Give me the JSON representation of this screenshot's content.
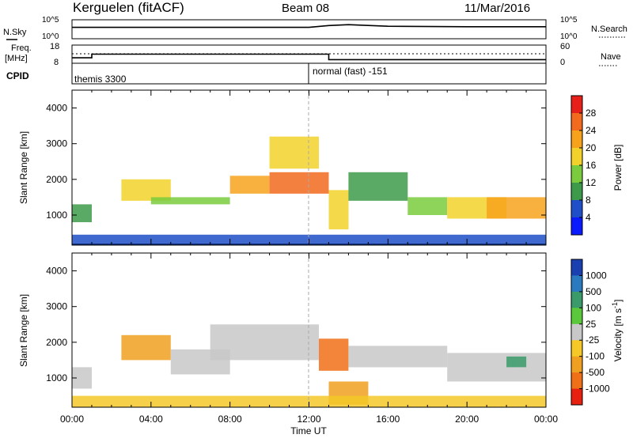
{
  "header": {
    "station": "Kerguelen (fitACF)",
    "beam": "Beam 08",
    "date": "11/Mar/2016"
  },
  "noise_panel": {
    "left_label": "N.Sky",
    "right_label": "N.Search",
    "left_ticks": [
      "10^5",
      "10^0"
    ],
    "right_ticks": [
      "10^5",
      "10^0"
    ]
  },
  "freq_panel": {
    "left_label_1": "Freq.",
    "left_label_2": "[MHz]",
    "right_label": "Nave",
    "left_ticks": [
      "18",
      "8"
    ],
    "right_ticks": [
      "60",
      "0"
    ]
  },
  "cpid_panel": {
    "label": "CPID",
    "modes": [
      "themis 3300",
      "normal (fast) -151"
    ]
  },
  "power_panel": {
    "ylabel": "Slant Range [km]",
    "colorbar_label": "Power [dB]",
    "colorbar_ticks": [
      "28",
      "24",
      "20",
      "16",
      "12",
      "8",
      "4"
    ],
    "colorbar_colors": [
      "#e8201a",
      "#f26a1e",
      "#f7a21c",
      "#f2d22a",
      "#7acb3d",
      "#3d9a4a",
      "#1f4fc8",
      "#0a1aff"
    ],
    "yticks": [
      "4000",
      "3000",
      "2000",
      "1000"
    ]
  },
  "velocity_panel": {
    "ylabel": "Slant Range [km]",
    "colorbar_label": "Velocity [m s^-1]",
    "colorbar_ticks": [
      "1000",
      "500",
      "100",
      "25",
      "-25",
      "-100",
      "-500",
      "-1000"
    ],
    "colorbar_colors": [
      "#1a3fb0",
      "#2a7ac0",
      "#3a9a6a",
      "#5ac83a",
      "#c8c8c8",
      "#f5c828",
      "#f0a020",
      "#f07018",
      "#e82010"
    ],
    "yticks": [
      "4000",
      "3000",
      "2000",
      "1000"
    ]
  },
  "xaxis": {
    "label": "Time UT",
    "ticks": [
      "00:00",
      "04:00",
      "08:00",
      "12:00",
      "16:00",
      "20:00",
      "00:00"
    ]
  },
  "chart_data": [
    {
      "type": "line",
      "title": "N.Sky / N.Search",
      "x": [
        "00:00",
        "04:00",
        "08:00",
        "12:00",
        "13:00",
        "14:00",
        "16:00",
        "20:00",
        "24:00"
      ],
      "series": [
        {
          "name": "N.Sky",
          "values": [
            1000,
            1000,
            1000,
            1000,
            3000,
            5000,
            2000,
            1500,
            1500
          ]
        }
      ],
      "ylim": [
        1,
        100000
      ],
      "yscale": "log"
    },
    {
      "type": "line",
      "title": "Freq. [MHz] / Nave",
      "x": [
        "00:00",
        "01:00",
        "01:00",
        "13:00",
        "13:00",
        "24:00"
      ],
      "series": [
        {
          "name": "Freq.",
          "values": [
            11,
            11,
            13,
            13,
            10,
            10
          ]
        },
        {
          "name": "Nave",
          "values": [
            18,
            18,
            18,
            18,
            18,
            18
          ]
        }
      ],
      "ylim": [
        8,
        18
      ],
      "xlabel": "",
      "ylabel": "Freq. [MHz]"
    },
    {
      "type": "heatmap",
      "title": "Power [dB]",
      "xlabel": "Time UT",
      "ylabel": "Slant Range [km]",
      "xlim": [
        0,
        24
      ],
      "ylim": [
        180,
        4500
      ],
      "zlim": [
        0,
        30
      ],
      "cells": [
        {
          "x": [
            0,
            1
          ],
          "y": [
            800,
            1300
          ],
          "z": 10
        },
        {
          "x": [
            2.5,
            5
          ],
          "y": [
            1400,
            2000
          ],
          "z": 18
        },
        {
          "x": [
            4,
            8
          ],
          "y": [
            1300,
            1500
          ],
          "z": 12
        },
        {
          "x": [
            8,
            10
          ],
          "y": [
            1600,
            2100
          ],
          "z": 22
        },
        {
          "x": [
            10,
            13
          ],
          "y": [
            1600,
            2200
          ],
          "z": 26
        },
        {
          "x": [
            10,
            12.5
          ],
          "y": [
            2300,
            3200
          ],
          "z": 16
        },
        {
          "x": [
            13,
            14
          ],
          "y": [
            600,
            1700
          ],
          "z": 18
        },
        {
          "x": [
            14,
            17
          ],
          "y": [
            1400,
            2200
          ],
          "z": 10
        },
        {
          "x": [
            17,
            19
          ],
          "y": [
            1000,
            1500
          ],
          "z": 14
        },
        {
          "x": [
            19,
            22
          ],
          "y": [
            900,
            1500
          ],
          "z": 18
        },
        {
          "x": [
            21,
            24
          ],
          "y": [
            900,
            1500
          ],
          "z": 22
        },
        {
          "x": [
            0,
            24
          ],
          "y": [
            180,
            450
          ],
          "z": 6
        }
      ]
    },
    {
      "type": "heatmap",
      "title": "Velocity [m s^-1]",
      "xlabel": "Time UT",
      "ylabel": "Slant Range [km]",
      "xlim": [
        0,
        24
      ],
      "ylim": [
        180,
        4500
      ],
      "zlim": [
        -1000,
        1000
      ],
      "cells": [
        {
          "x": [
            0,
            1
          ],
          "y": [
            700,
            1300
          ],
          "z": 0
        },
        {
          "x": [
            2.5,
            5
          ],
          "y": [
            1500,
            2200
          ],
          "z": -400
        },
        {
          "x": [
            5,
            8
          ],
          "y": [
            1100,
            1800
          ],
          "z": 0
        },
        {
          "x": [
            7,
            12.5
          ],
          "y": [
            1500,
            2500
          ],
          "z": 0
        },
        {
          "x": [
            12.5,
            14
          ],
          "y": [
            1200,
            2100
          ],
          "z": -900
        },
        {
          "x": [
            13,
            15
          ],
          "y": [
            250,
            900
          ],
          "z": -300
        },
        {
          "x": [
            14,
            19
          ],
          "y": [
            1300,
            1900
          ],
          "z": 0
        },
        {
          "x": [
            19,
            24
          ],
          "y": [
            900,
            1700
          ],
          "z": 0
        },
        {
          "x": [
            22,
            23
          ],
          "y": [
            1300,
            1600
          ],
          "z": 150
        },
        {
          "x": [
            0,
            24
          ],
          "y": [
            180,
            500
          ],
          "z": -60
        }
      ]
    }
  ]
}
